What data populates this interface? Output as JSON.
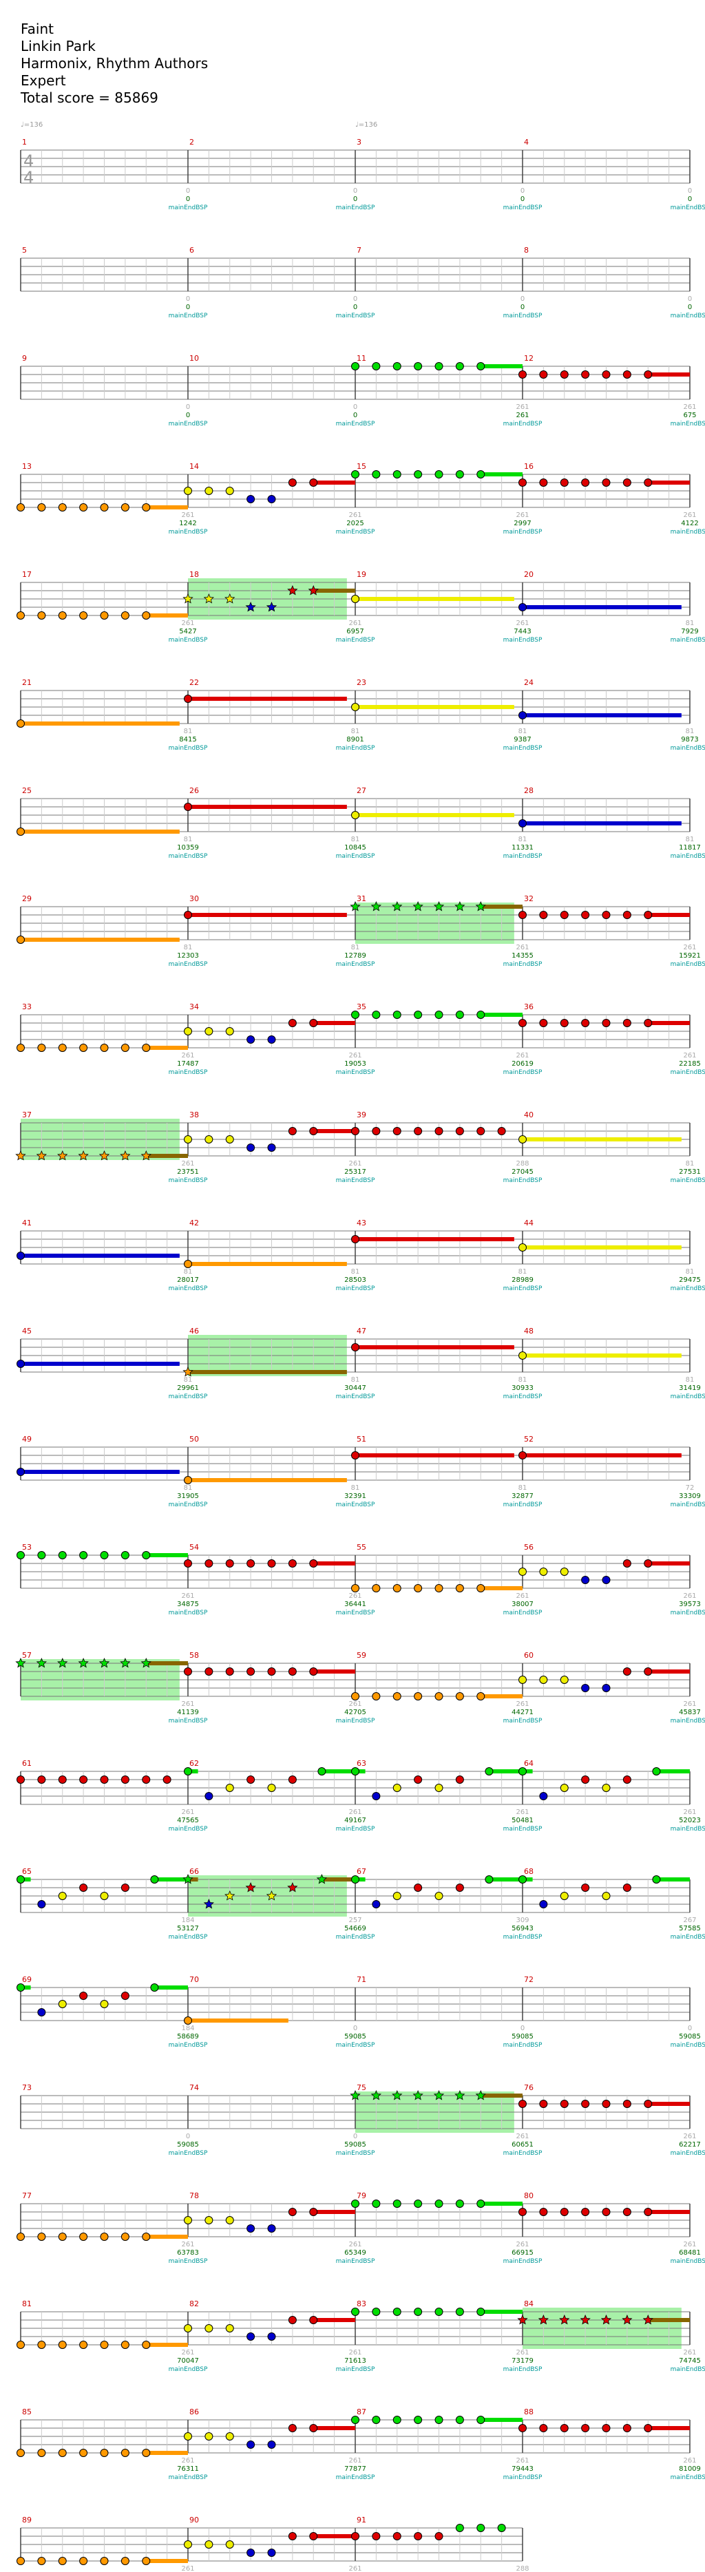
{
  "song": {
    "title": "Faint",
    "artist": "Linkin Park",
    "charter": "Harmonix, Rhythm Authors",
    "difficulty": "Expert",
    "total_score_text": "Total score = 85869"
  },
  "colors": {
    "green": "#00dd00",
    "red": "#dd0000",
    "yellow": "#eeee00",
    "blue": "#0000cc",
    "orange": "#ff9900",
    "starpower_fill": "#99ee99",
    "measure_number": "#cc0000",
    "score_text": "#006600",
    "count_text": "#aaaaaa",
    "event_text": "#009999"
  },
  "chart": {
    "bpm_markers": [
      "♩=136",
      "♩=136"
    ],
    "time_signature": [
      "4",
      "4"
    ],
    "event_label": "mainEndBSP",
    "measures": [
      {
        "n": "1",
        "count": "0",
        "score": "0"
      },
      {
        "n": "2",
        "count": "0",
        "score": "0"
      },
      {
        "n": "3",
        "count": "0",
        "score": "0"
      },
      {
        "n": "4",
        "count": "0",
        "score": "0"
      },
      {
        "n": "5",
        "count": "0",
        "score": "0"
      },
      {
        "n": "6",
        "count": "0",
        "score": "0"
      },
      {
        "n": "7",
        "count": "0",
        "score": "0"
      },
      {
        "n": "8",
        "count": "0",
        "score": "0"
      },
      {
        "n": "9",
        "count": "0",
        "score": "0"
      },
      {
        "n": "10",
        "count": "0",
        "score": "0"
      },
      {
        "n": "11",
        "count": "261",
        "score": "261"
      },
      {
        "n": "12",
        "count": "261",
        "score": "675"
      },
      {
        "n": "13",
        "count": "261",
        "score": "1242"
      },
      {
        "n": "14",
        "count": "261",
        "score": "2025"
      },
      {
        "n": "15",
        "count": "261",
        "score": "2997"
      },
      {
        "n": "16",
        "count": "261",
        "score": "4122"
      },
      {
        "n": "17",
        "count": "261",
        "score": "5427"
      },
      {
        "n": "18",
        "count": "261",
        "score": "6957"
      },
      {
        "n": "19",
        "count": "261",
        "score": "7443"
      },
      {
        "n": "20",
        "count": "81",
        "score": "7929"
      },
      {
        "n": "21",
        "count": "81",
        "score": "8415"
      },
      {
        "n": "22",
        "count": "81",
        "score": "8901"
      },
      {
        "n": "23",
        "count": "81",
        "score": "9387"
      },
      {
        "n": "24",
        "count": "81",
        "score": "9873"
      },
      {
        "n": "25",
        "count": "81",
        "score": "10359"
      },
      {
        "n": "26",
        "count": "81",
        "score": "10845"
      },
      {
        "n": "27",
        "count": "81",
        "score": "11331"
      },
      {
        "n": "28",
        "count": "81",
        "score": "11817"
      },
      {
        "n": "29",
        "count": "81",
        "score": "12303"
      },
      {
        "n": "30",
        "count": "81",
        "score": "12789"
      },
      {
        "n": "31",
        "count": "261",
        "score": "14355"
      },
      {
        "n": "32",
        "count": "261",
        "score": "15921"
      },
      {
        "n": "33",
        "count": "261",
        "score": "17487"
      },
      {
        "n": "34",
        "count": "261",
        "score": "19053"
      },
      {
        "n": "35",
        "count": "261",
        "score": "20619"
      },
      {
        "n": "36",
        "count": "261",
        "score": "22185"
      },
      {
        "n": "37",
        "count": "261",
        "score": "23751"
      },
      {
        "n": "38",
        "count": "261",
        "score": "25317"
      },
      {
        "n": "39",
        "count": "288",
        "score": "27045"
      },
      {
        "n": "40",
        "count": "81",
        "score": "27531"
      },
      {
        "n": "41",
        "count": "81",
        "score": "28017"
      },
      {
        "n": "42",
        "count": "81",
        "score": "28503"
      },
      {
        "n": "43",
        "count": "81",
        "score": "28989"
      },
      {
        "n": "44",
        "count": "81",
        "score": "29475"
      },
      {
        "n": "45",
        "count": "81",
        "score": "29961"
      },
      {
        "n": "46",
        "count": "81",
        "score": "30447"
      },
      {
        "n": "47",
        "count": "81",
        "score": "30933"
      },
      {
        "n": "48",
        "count": "81",
        "score": "31419"
      },
      {
        "n": "49",
        "count": "81",
        "score": "31905"
      },
      {
        "n": "50",
        "count": "81",
        "score": "32391"
      },
      {
        "n": "51",
        "count": "81",
        "score": "32877"
      },
      {
        "n": "52",
        "count": "72",
        "score": "33309"
      },
      {
        "n": "53",
        "count": "261",
        "score": "34875"
      },
      {
        "n": "54",
        "count": "261",
        "score": "36441"
      },
      {
        "n": "55",
        "count": "261",
        "score": "38007"
      },
      {
        "n": "56",
        "count": "261",
        "score": "39573"
      },
      {
        "n": "57",
        "count": "261",
        "score": "41139"
      },
      {
        "n": "58",
        "count": "261",
        "score": "42705"
      },
      {
        "n": "59",
        "count": "261",
        "score": "44271"
      },
      {
        "n": "60",
        "count": "261",
        "score": "45837"
      },
      {
        "n": "61",
        "count": "261",
        "score": "47565"
      },
      {
        "n": "62",
        "count": "261",
        "score": "49167"
      },
      {
        "n": "63",
        "count": "261",
        "score": "50481"
      },
      {
        "n": "64",
        "count": "261",
        "score": "52023"
      },
      {
        "n": "65",
        "count": "184",
        "score": "53127"
      },
      {
        "n": "66",
        "count": "257",
        "score": "54669"
      },
      {
        "n": "67",
        "count": "309",
        "score": "56943"
      },
      {
        "n": "68",
        "count": "267",
        "score": "57585"
      },
      {
        "n": "69",
        "count": "184",
        "score": "58689"
      },
      {
        "n": "70",
        "count": "0",
        "score": "59085"
      },
      {
        "n": "71",
        "count": "0",
        "score": "59085"
      },
      {
        "n": "72",
        "count": "0",
        "score": "59085"
      },
      {
        "n": "73",
        "count": "0",
        "score": "59085"
      },
      {
        "n": "74",
        "count": "0",
        "score": "59085"
      },
      {
        "n": "75",
        "count": "261",
        "score": "60651"
      },
      {
        "n": "76",
        "count": "261",
        "score": "62217"
      },
      {
        "n": "77",
        "count": "261",
        "score": "63783"
      },
      {
        "n": "78",
        "count": "261",
        "score": "65349"
      },
      {
        "n": "79",
        "count": "261",
        "score": "66915"
      },
      {
        "n": "80",
        "count": "261",
        "score": "68481"
      },
      {
        "n": "81",
        "count": "261",
        "score": "70047"
      },
      {
        "n": "82",
        "count": "261",
        "score": "71613"
      },
      {
        "n": "83",
        "count": "261",
        "score": "73179"
      },
      {
        "n": "84",
        "count": "261",
        "score": "74745"
      },
      {
        "n": "85",
        "count": "261",
        "score": "76311"
      },
      {
        "n": "86",
        "count": "261",
        "score": "77877"
      },
      {
        "n": "87",
        "count": "261",
        "score": "79443"
      },
      {
        "n": "88",
        "count": "261",
        "score": "81009"
      },
      {
        "n": "89",
        "count": "261",
        "score": "82575"
      },
      {
        "n": "90",
        "count": "261",
        "score": "84141"
      },
      {
        "n": "91",
        "count": "288",
        "score": "85869"
      }
    ],
    "starpower_measures": [
      "18",
      "31",
      "37",
      "46",
      "57",
      "66",
      "75",
      "84"
    ],
    "patterns": {
      "green_run": [
        [
          0.0,
          "G"
        ],
        [
          0.125,
          "G"
        ],
        [
          0.25,
          "G"
        ],
        [
          0.375,
          "G"
        ],
        [
          0.5,
          "G"
        ],
        [
          0.625,
          "G"
        ],
        [
          0.75,
          "G",
          "sus",
          0.25
        ]
      ],
      "red_run": [
        [
          0.0,
          "R"
        ],
        [
          0.125,
          "R"
        ],
        [
          0.25,
          "R"
        ],
        [
          0.375,
          "R"
        ],
        [
          0.5,
          "R"
        ],
        [
          0.625,
          "R"
        ],
        [
          0.75,
          "R",
          "sus",
          0.25
        ]
      ],
      "orange_run": [
        [
          0.0,
          "O"
        ],
        [
          0.125,
          "O"
        ],
        [
          0.25,
          "O"
        ],
        [
          0.375,
          "O"
        ],
        [
          0.5,
          "O"
        ],
        [
          0.625,
          "O"
        ],
        [
          0.75,
          "O",
          "sus",
          0.25
        ]
      ],
      "riff": [
        [
          0.0,
          "Y"
        ],
        [
          0.125,
          "Y"
        ],
        [
          0.25,
          "Y"
        ],
        [
          0.375,
          "B"
        ],
        [
          0.5,
          "B"
        ],
        [
          0.625,
          "R"
        ],
        [
          0.75,
          "R",
          "sus",
          0.25
        ]
      ],
      "red_long": [
        [
          0.0,
          "R",
          "sus",
          0.95
        ]
      ],
      "yellow_long": [
        [
          0.0,
          "Y",
          "sus",
          0.95
        ]
      ],
      "blue_long": [
        [
          0.0,
          "B",
          "sus",
          0.95
        ]
      ],
      "orange_long": [
        [
          0.0,
          "O",
          "sus",
          0.95
        ]
      ],
      "red_eight": [
        [
          0.0,
          "R"
        ],
        [
          0.125,
          "R"
        ],
        [
          0.25,
          "R"
        ],
        [
          0.375,
          "R"
        ],
        [
          0.5,
          "R"
        ],
        [
          0.625,
          "R"
        ],
        [
          0.75,
          "R"
        ],
        [
          0.875,
          "R"
        ]
      ],
      "sync_a": [
        [
          0.0,
          "G",
          "sus",
          0.06
        ],
        [
          0.125,
          "B"
        ],
        [
          0.25,
          "Y"
        ],
        [
          0.375,
          "R"
        ],
        [
          0.5,
          "Y"
        ],
        [
          0.625,
          "R"
        ],
        [
          0.8,
          "G",
          "sus",
          0.2
        ]
      ],
      "orange_tail": [
        [
          0.75,
          "O",
          "sus",
          0.25
        ]
      ],
      "orange_half": [
        [
          0.0,
          "O",
          "sus",
          0.6
        ]
      ],
      "m91": [
        [
          0.0,
          "R"
        ],
        [
          0.125,
          "R"
        ],
        [
          0.25,
          "R"
        ],
        [
          0.375,
          "R"
        ],
        [
          0.5,
          "R"
        ],
        [
          0.625,
          "G"
        ],
        [
          0.75,
          "G"
        ],
        [
          0.875,
          "G"
        ]
      ]
    },
    "note_layout": {
      "11": "green_run",
      "12": "red_run",
      "13": "orange_run",
      "14": "riff",
      "15": "green_run",
      "16": "red_run",
      "17": "orange_run",
      "18": "riff",
      "19": "yellow_long",
      "20": "blue_long",
      "21": "orange_long",
      "22": "red_long",
      "23": "yellow_long",
      "24": "blue_long",
      "25": "orange_long",
      "26": "red_long",
      "27": "yellow_long",
      "28": "blue_long",
      "29": "orange_long",
      "30": "red_long",
      "31": "green_run",
      "32": "red_run",
      "33": "orange_run",
      "34": "riff",
      "35": "green_run",
      "36": "red_run",
      "37": "orange_run",
      "38": "riff",
      "39": "red_eight",
      "40": "yellow_long",
      "41": "blue_long",
      "42": "orange_long",
      "43": "red_long",
      "44": "yellow_long",
      "45": "blue_long",
      "46": "orange_long",
      "47": "red_long",
      "48": "yellow_long",
      "49": "blue_long",
      "50": "orange_long",
      "51": "red_long",
      "52": "red_long",
      "53": "green_run",
      "54": "red_run",
      "55": "orange_run",
      "56": "riff",
      "57": "green_run",
      "58": "red_run",
      "59": "orange_run",
      "60": "riff",
      "61": "red_eight",
      "62": "sync_a",
      "63": "sync_a",
      "64": "sync_a",
      "65": "sync_a",
      "66": "sync_a",
      "67": "sync_a",
      "68": "sync_a",
      "69": "sync_a",
      "70": "orange_half",
      "75": "green_run",
      "76": "red_run",
      "77": "orange_run",
      "78": "riff",
      "79": "green_run",
      "80": "red_run",
      "81": "orange_run",
      "82": "riff",
      "83": "green_run",
      "84": "red_run",
      "85": "orange_run",
      "86": "riff",
      "87": "green_run",
      "88": "red_run",
      "89": "orange_run",
      "90": "riff",
      "91": "m91"
    }
  }
}
